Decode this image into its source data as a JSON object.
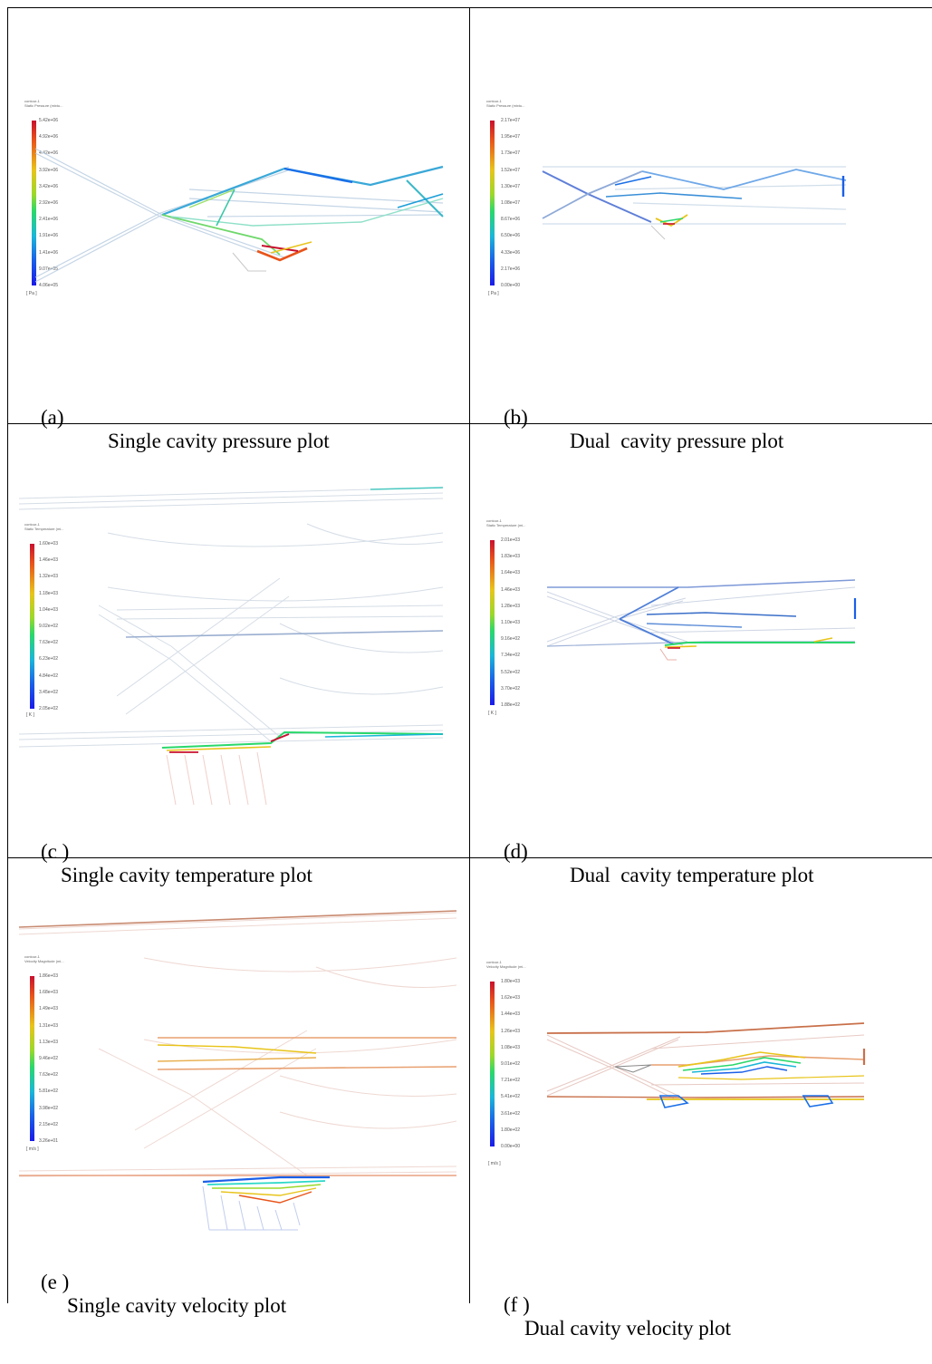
{
  "panels": [
    {
      "id": "a",
      "tag": "(a)",
      "caption": "Single cavity pressure plot",
      "legend": {
        "header_line1": "contour-1",
        "header_line2": "Static Pressure (mixtu...",
        "ticks": [
          "5.42e+06",
          "4.92e+06",
          "4.42e+06",
          "3.92e+06",
          "3.42e+06",
          "2.92e+06",
          "2.41e+06",
          "1.91e+06",
          "1.41e+06",
          "9.07e+05",
          "4.06e+05"
        ],
        "unit": "[ Pa ]"
      }
    },
    {
      "id": "b",
      "tag": "(b)",
      "caption": "Dual  cavity pressure plot",
      "legend": {
        "header_line1": "contour-1",
        "header_line2": "Static Pressure (mixtu...",
        "ticks": [
          "2.17e+07",
          "1.95e+07",
          "1.73e+07",
          "1.52e+07",
          "1.30e+07",
          "1.08e+07",
          "8.67e+06",
          "6.50e+06",
          "4.33e+06",
          "2.17e+06",
          "0.00e+00"
        ],
        "unit": "[ Pa ]"
      }
    },
    {
      "id": "c",
      "tag": "(c )",
      "caption": "Single cavity temperature plot",
      "legend": {
        "header_line1": "contour-1",
        "header_line2": "Static Temperature (mi...",
        "ticks": [
          "1.60e+03",
          "1.46e+03",
          "1.32e+03",
          "1.18e+03",
          "1.04e+03",
          "9.02e+02",
          "7.63e+02",
          "6.23e+02",
          "4.84e+02",
          "3.45e+02",
          "2.05e+02"
        ],
        "unit": "[ K ]"
      }
    },
    {
      "id": "d",
      "tag": "(d)",
      "caption": "Dual  cavity temperature plot",
      "legend": {
        "header_line1": "contour-1",
        "header_line2": "Static Temperature (mi...",
        "ticks": [
          "2.01e+03",
          "1.83e+03",
          "1.64e+03",
          "1.46e+03",
          "1.28e+03",
          "1.10e+03",
          "9.16e+02",
          "7.34e+02",
          "5.52e+02",
          "3.70e+02",
          "1.88e+02"
        ],
        "unit": "[ K ]"
      }
    },
    {
      "id": "e",
      "tag": "(e )",
      "caption": "Single cavity velocity plot",
      "legend": {
        "header_line1": "contour-1",
        "header_line2": "Velocity Magnitude (mi...",
        "ticks": [
          "1.86e+03",
          "1.68e+03",
          "1.49e+03",
          "1.31e+03",
          "1.13e+03",
          "9.46e+02",
          "7.63e+02",
          "5.81e+02",
          "3.98e+02",
          "2.15e+02",
          "3.26e+01"
        ],
        "unit": "[ m/s ]"
      }
    },
    {
      "id": "f",
      "tag": "(f )",
      "caption": "Dual cavity velocity plot",
      "legend": {
        "header_line1": "contour-1",
        "header_line2": "Velocity Magnitude (mi...",
        "ticks": [
          "1.80e+03",
          "1.62e+03",
          "1.44e+03",
          "1.26e+03",
          "1.08e+03",
          "9.01e+02",
          "7.21e+02",
          "5.41e+02",
          "3.61e+02",
          "1.80e+02",
          "0.00e+00"
        ],
        "unit": "[ m/s ]"
      }
    }
  ]
}
